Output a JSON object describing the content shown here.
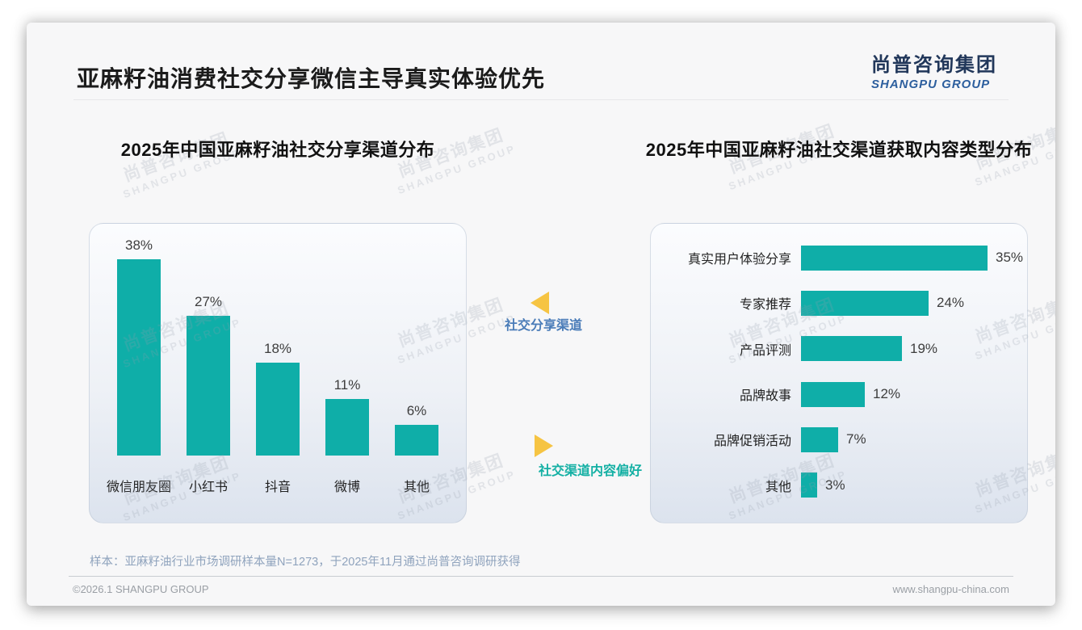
{
  "page": {
    "title": "亚麻籽油消费社交分享微信主导真实体验优先",
    "logo": {
      "cn": "尚普咨询集团",
      "en": "SHANGPU GROUP"
    },
    "footer_note": "样本：亚麻籽油行业市场调研样本量N=1273，于2025年11月通过尚普咨询调研获得",
    "copyright": "©2026.1 SHANGPU GROUP",
    "website": "www.shangpu-china.com",
    "watermark": {
      "line1": "尚普咨询集团",
      "line2": "SHANGPU GROUP"
    }
  },
  "colors": {
    "bar_teal": "#0faea8",
    "arrow_yellow": "#f6c443",
    "annotation_blue": "#4a7cb8",
    "annotation_teal": "#14b0a4",
    "logo_navy": "#21375a",
    "logo_blue": "#2d5f9e"
  },
  "annotations": {
    "left_panel_label": "社交分享渠道",
    "right_panel_label": "社交渠道内容偏好"
  },
  "chart_data": [
    {
      "type": "bar",
      "orientation": "vertical",
      "title": "2025年中国亚麻籽油社交分享渠道分布",
      "categories": [
        "微信朋友圈",
        "小红书",
        "抖音",
        "微博",
        "其他"
      ],
      "values": [
        38,
        27,
        18,
        11,
        6
      ],
      "data_labels": [
        "38%",
        "27%",
        "18%",
        "11%",
        "6%"
      ],
      "unit": "%",
      "ylim": [
        0,
        40
      ],
      "grid": false,
      "legend": false
    },
    {
      "type": "bar",
      "orientation": "horizontal",
      "title": "2025年中国亚麻籽油社交渠道获取内容类型分布",
      "categories": [
        "真实用户体验分享",
        "专家推荐",
        "产品评测",
        "品牌故事",
        "品牌促销活动",
        "其他"
      ],
      "values": [
        35,
        24,
        19,
        12,
        7,
        3
      ],
      "data_labels": [
        "35%",
        "24%",
        "19%",
        "12%",
        "7%",
        "3%"
      ],
      "unit": "%",
      "xlim": [
        0,
        40
      ],
      "grid": false,
      "legend": false
    }
  ]
}
